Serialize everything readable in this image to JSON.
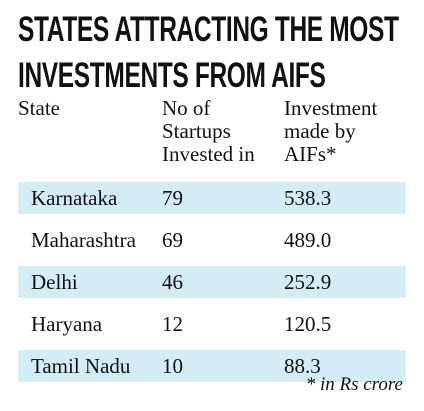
{
  "chart_data": {
    "type": "table",
    "title_lines": [
      "STATES ATTRACTING THE MOST",
      "INVESTMENTS FROM AIFS"
    ],
    "columns": [
      [
        "State"
      ],
      [
        "No of",
        "Startups",
        "Invested in"
      ],
      [
        "Investment",
        "made by",
        "AIFs*"
      ]
    ],
    "rows": [
      {
        "state": "Karnataka",
        "startups": "79",
        "investment": "538.3"
      },
      {
        "state": "Maharashtra",
        "startups": "69",
        "investment": "489.0"
      },
      {
        "state": "Delhi",
        "startups": "46",
        "investment": "252.9"
      },
      {
        "state": "Haryana",
        "startups": "12",
        "investment": "120.5"
      },
      {
        "state": "Tamil Nadu",
        "startups": "10",
        "investment": "88.3"
      }
    ],
    "footnote": "* in Rs crore",
    "row_shading_color": "#d4ecf5"
  }
}
